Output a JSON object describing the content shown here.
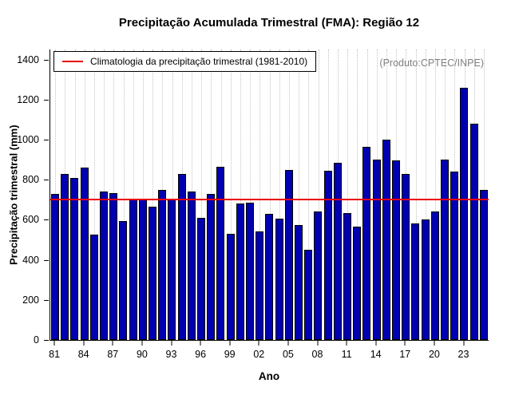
{
  "chart_data": {
    "type": "bar",
    "title": "Precipitação Acumulada Trimestral (FMA): Região 12",
    "xlabel": "Ano",
    "ylabel": "Precipitação trimestral (mm)",
    "legend_label": "Climatologia da precipitação trimestral (1981-2010)",
    "annotation": "(Produto:CPTEC/INPE)",
    "years": [
      1981,
      1982,
      1983,
      1984,
      1985,
      1986,
      1987,
      1988,
      1989,
      1990,
      1991,
      1992,
      1993,
      1994,
      1995,
      1996,
      1997,
      1998,
      1999,
      2000,
      2001,
      2002,
      2003,
      2004,
      2005,
      2006,
      2007,
      2008,
      2009,
      2010,
      2011,
      2012,
      2013,
      2014,
      2015,
      2016,
      2017,
      2018,
      2019,
      2020,
      2021,
      2022,
      2023,
      2024,
      2025
    ],
    "values": [
      730,
      830,
      810,
      860,
      525,
      740,
      735,
      595,
      705,
      700,
      665,
      750,
      700,
      830,
      740,
      610,
      730,
      865,
      530,
      680,
      685,
      540,
      630,
      605,
      850,
      575,
      450,
      640,
      845,
      885,
      635,
      565,
      965,
      900,
      1000,
      895,
      830,
      580,
      600,
      640,
      900,
      840,
      1260,
      1080,
      750
    ],
    "x_tick_labels": [
      "81",
      "84",
      "87",
      "90",
      "93",
      "96",
      "99",
      "02",
      "05",
      "08",
      "11",
      "14",
      "17",
      "20",
      "23"
    ],
    "x_tick_every": 3,
    "y_ticks": [
      0,
      200,
      400,
      600,
      800,
      1000,
      1200,
      1400
    ],
    "ylim": [
      0,
      1450
    ],
    "climatology_value": 700,
    "grid": true,
    "legend_position": "top-left",
    "colors": {
      "bar_fill": "#0000b0",
      "bar_border": "#000000",
      "climatology_line": "#e80000",
      "gridline": "#c4c4c4",
      "annotation_text": "#808080"
    }
  }
}
